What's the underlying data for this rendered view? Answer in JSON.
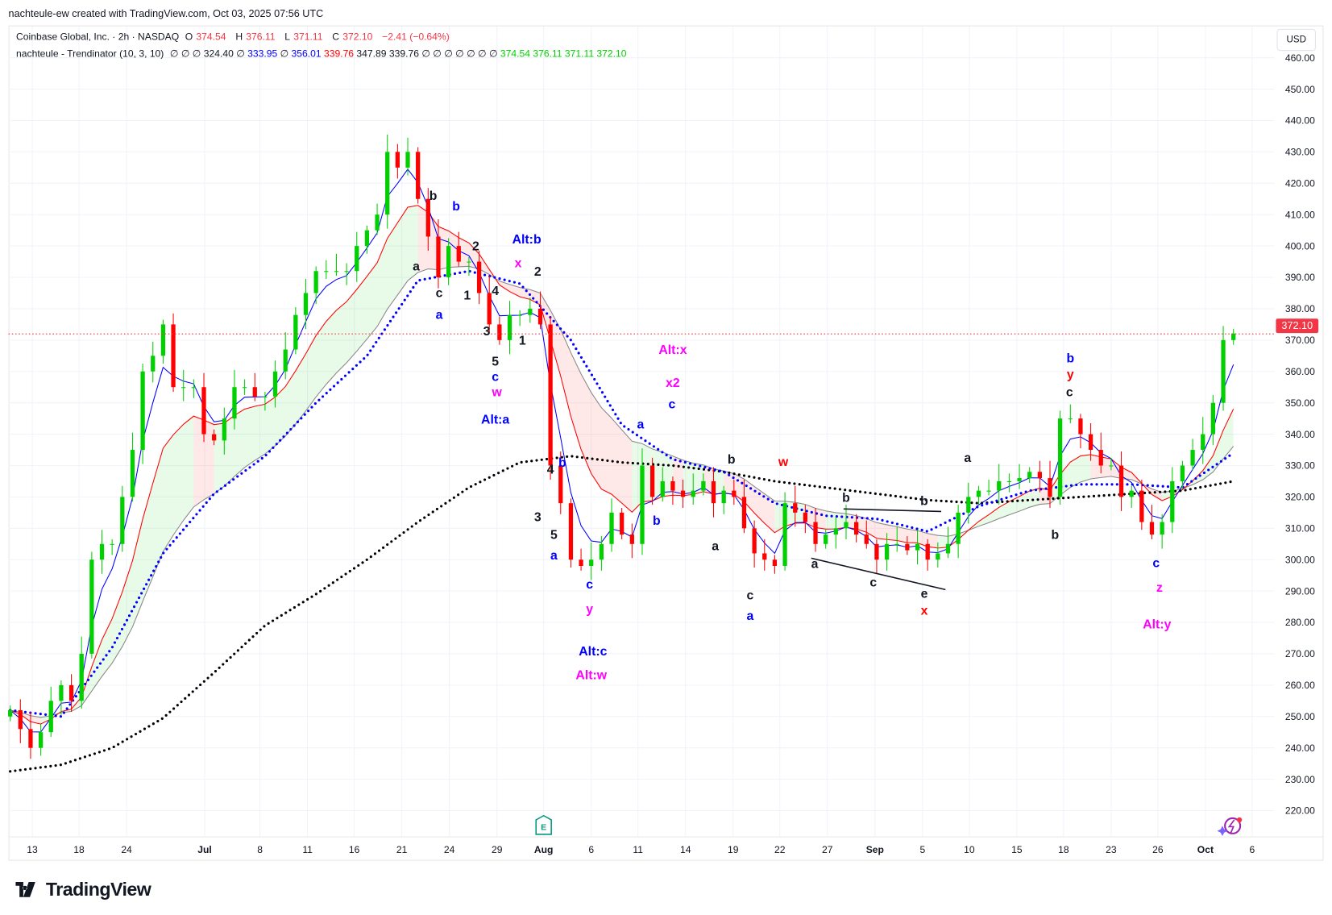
{
  "header": {
    "attribution": "nachteule-ew created with TradingView.com, Oct 03, 2025 07:56 UTC"
  },
  "legend": {
    "symbol": "Coinbase Global, Inc. · 2h · NASDAQ",
    "o_label": "O",
    "o": "374.54",
    "h_label": "H",
    "h": "376.11",
    "l_label": "L",
    "l": "371.11",
    "c_label": "C",
    "c": "372.10",
    "change": "−2.41 (−0.64%)",
    "indicator": "nachteule - Trendinator (10, 3, 10)",
    "ind_values": [
      "∅",
      "∅",
      "∅",
      "324.40",
      "∅",
      "333.95",
      "∅",
      "356.01",
      "339.76",
      "347.89",
      "339.76",
      "∅",
      "∅",
      "∅",
      "∅",
      "∅",
      "∅",
      "∅",
      "374.54",
      "376.11",
      "371.11",
      "372.10"
    ],
    "ind_colors": [
      "#131722",
      "#131722",
      "#131722",
      "#131722",
      "#131722",
      "#0000ff",
      "#131722",
      "#0000ff",
      "#ff0000",
      "#131722",
      "#131722",
      "#131722",
      "#131722",
      "#131722",
      "#131722",
      "#131722",
      "#131722",
      "#131722",
      "#00d000",
      "#00d000",
      "#00d000",
      "#00d000"
    ]
  },
  "axis": {
    "currency": "USD",
    "last_price": "372.10"
  },
  "footer": {
    "brand": "TradingView",
    "earnings_badge": "E"
  },
  "colors": {
    "up": "#00d000",
    "down": "#ff0000",
    "neutral": "#131722",
    "blue": "#0000ff",
    "magenta": "#ff00ff",
    "last_price": "#f23645"
  },
  "chart_data": {
    "type": "candlestick",
    "title": "Coinbase Global, Inc. · 2h · NASDAQ",
    "ylabel": "USD",
    "ylim": [
      215,
      465
    ],
    "y_ticks": [
      "460.00",
      "450.00",
      "440.00",
      "430.00",
      "420.00",
      "410.00",
      "400.00",
      "390.00",
      "380.00",
      "370.00",
      "360.00",
      "350.00",
      "340.00",
      "330.00",
      "320.00",
      "310.00",
      "300.00",
      "290.00",
      "280.00",
      "270.00",
      "260.00",
      "250.00",
      "240.00",
      "230.00",
      "220.00"
    ],
    "x_ticks": [
      "13",
      "18",
      "24",
      "Jul",
      "8",
      "11",
      "16",
      "21",
      "24",
      "29",
      "Aug",
      "6",
      "11",
      "14",
      "19",
      "22",
      "27",
      "Sep",
      "5",
      "10",
      "15",
      "18",
      "23",
      "26",
      "Oct",
      "6"
    ],
    "closes": [
      252,
      246,
      240,
      245,
      255,
      260,
      255,
      270,
      300,
      305,
      305,
      320,
      335,
      360,
      365,
      375,
      355,
      355,
      355,
      340,
      338,
      345,
      355,
      355,
      352,
      352,
      360,
      367,
      378,
      385,
      392,
      392,
      392,
      392,
      400,
      405,
      410,
      430,
      425,
      430,
      415,
      403,
      390,
      400,
      395,
      395,
      385,
      375,
      370,
      378,
      378,
      380,
      375,
      330,
      318,
      300,
      298,
      300,
      305,
      315,
      308,
      305,
      330,
      320,
      325,
      322,
      320,
      322,
      325,
      318,
      322,
      320,
      310,
      302,
      300,
      298,
      318,
      315,
      312,
      305,
      308,
      310,
      312,
      308,
      305,
      300,
      305,
      305,
      303,
      305,
      300,
      302,
      305,
      315,
      320,
      322,
      322,
      325,
      325,
      326,
      328,
      326,
      320,
      345,
      345,
      340,
      335,
      330,
      330,
      320,
      322,
      312,
      308,
      312,
      325,
      330,
      335,
      340,
      350,
      370,
      372.1
    ],
    "series": [
      {
        "name": "slow MA (black dotted)",
        "step": 5,
        "values": [
          232.5,
          234.6,
          240,
          249.5,
          264,
          279,
          289,
          300,
          312,
          323,
          331,
          333,
          331,
          330,
          328,
          325,
          323,
          321,
          319,
          318,
          319,
          320,
          321,
          322,
          325
        ]
      },
      {
        "name": "MA (blue dotted)",
        "step": 5,
        "values": [
          252,
          250,
          272,
          302,
          321,
          333,
          350,
          365,
          389,
          392,
          388,
          370,
          343,
          332,
          328,
          318,
          314,
          313,
          309,
          317,
          322,
          324,
          324,
          323,
          334
        ]
      }
    ],
    "annotations": [
      {
        "text": "b",
        "color": "#131722"
      },
      {
        "text": "a",
        "color": "#131722"
      },
      {
        "text": "c",
        "color": "#131722"
      },
      {
        "text": "2",
        "color": "#131722"
      },
      {
        "text": "1",
        "color": "#131722"
      },
      {
        "text": "4",
        "color": "#131722"
      },
      {
        "text": "3",
        "color": "#131722"
      },
      {
        "text": "5",
        "color": "#131722"
      },
      {
        "text": "1",
        "color": "#131722"
      },
      {
        "text": "2",
        "color": "#131722"
      },
      {
        "text": "4",
        "color": "#131722"
      },
      {
        "text": "3",
        "color": "#131722"
      },
      {
        "text": "5",
        "color": "#131722"
      },
      {
        "text": "b",
        "color": "#131722"
      },
      {
        "text": "a",
        "color": "#131722"
      },
      {
        "text": "c",
        "color": "#131722"
      },
      {
        "text": "b",
        "color": "#131722"
      },
      {
        "text": "a",
        "color": "#131722"
      },
      {
        "text": "c",
        "color": "#131722"
      },
      {
        "text": "b",
        "color": "#131722"
      },
      {
        "text": "e",
        "color": "#131722"
      },
      {
        "text": "a",
        "color": "#131722"
      },
      {
        "text": "b",
        "color": "#131722"
      },
      {
        "text": "c",
        "color": "#131722"
      },
      {
        "text": "b",
        "color": "#0000ff"
      },
      {
        "text": "a",
        "color": "#0000ff"
      },
      {
        "text": "c",
        "color": "#0000ff"
      },
      {
        "text": "Alt:a",
        "color": "#0000ff"
      },
      {
        "text": "Alt:b",
        "color": "#0000ff"
      },
      {
        "text": "a",
        "color": "#0000ff"
      },
      {
        "text": "c",
        "color": "#0000ff"
      },
      {
        "text": "b",
        "color": "#0000ff"
      },
      {
        "text": "a",
        "color": "#0000ff"
      },
      {
        "text": "c",
        "color": "#0000ff"
      },
      {
        "text": "b",
        "color": "#0000ff"
      },
      {
        "text": "a",
        "color": "#0000ff"
      },
      {
        "text": "Alt:c",
        "color": "#0000ff"
      },
      {
        "text": "b",
        "color": "#0000ff"
      },
      {
        "text": "c",
        "color": "#0000ff"
      },
      {
        "text": "x",
        "color": "#ff00ff"
      },
      {
        "text": "w",
        "color": "#ff00ff"
      },
      {
        "text": "Alt:x",
        "color": "#ff00ff"
      },
      {
        "text": "x2",
        "color": "#ff00ff"
      },
      {
        "text": "y",
        "color": "#ff00ff"
      },
      {
        "text": "Alt:w",
        "color": "#ff00ff"
      },
      {
        "text": "z",
        "color": "#ff00ff"
      },
      {
        "text": "Alt:y",
        "color": "#ff00ff"
      },
      {
        "text": "w",
        "color": "#ff0000"
      },
      {
        "text": "x",
        "color": "#ff0000"
      },
      {
        "text": "y",
        "color": "#ff0000"
      }
    ]
  }
}
